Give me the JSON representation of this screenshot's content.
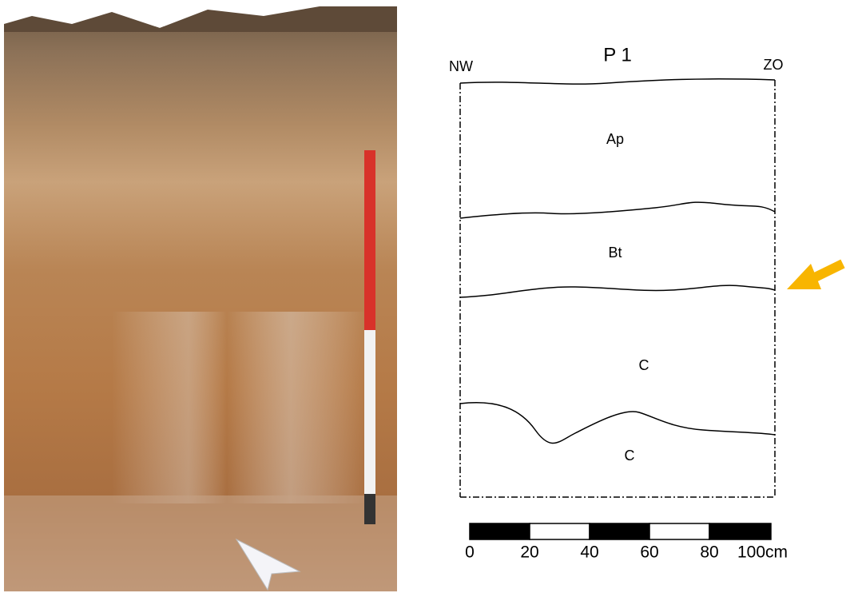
{
  "title": "P 1",
  "orientation": {
    "left": "NW",
    "right": "ZO"
  },
  "horizons": [
    "Ap",
    "Bt",
    "C",
    "C"
  ],
  "scale": {
    "labels": [
      "0",
      "20",
      "40",
      "60",
      "80",
      "100cm"
    ]
  }
}
